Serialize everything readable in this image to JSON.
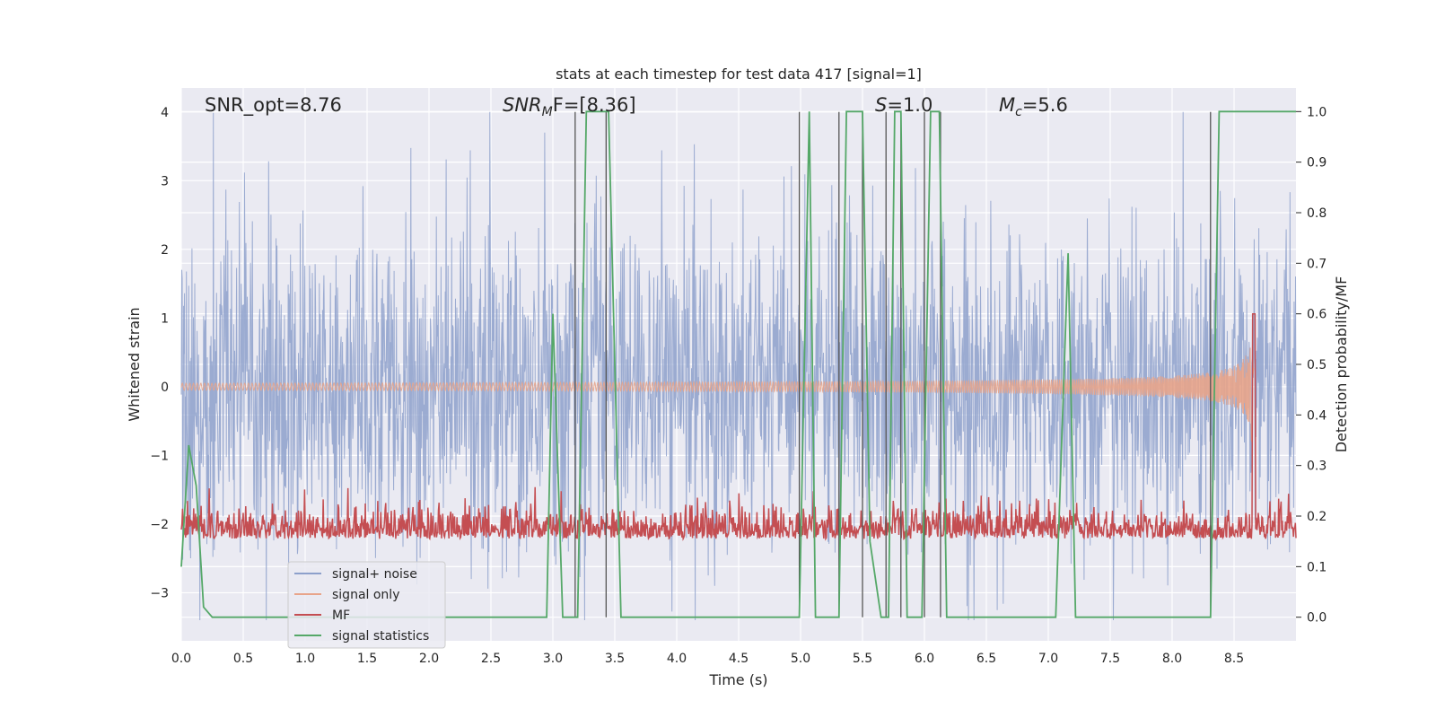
{
  "chart_data": {
    "type": "line",
    "title": "stats at each timestep for test data 417 [signal=1]",
    "xlabel": "Time (s)",
    "ylabel": "Whitened strain",
    "y2label": "Detection probability/MF",
    "xlim": [
      0.0,
      9.0
    ],
    "ylim": [
      -3.7,
      4.35
    ],
    "y2lim": [
      -0.0467,
      1.0467
    ],
    "xticks": [
      "0.0",
      "0.5",
      "1.0",
      "1.5",
      "2.0",
      "2.5",
      "3.0",
      "3.5",
      "4.0",
      "4.5",
      "5.0",
      "5.5",
      "6.0",
      "6.5",
      "7.0",
      "7.5",
      "8.0",
      "8.5"
    ],
    "yticks": [
      "4",
      "3",
      "2",
      "1",
      "0",
      "−1",
      "−2",
      "−3"
    ],
    "y2ticks": [
      "1.0",
      "0.9",
      "0.8",
      "0.7",
      "0.6",
      "0.5",
      "0.4",
      "0.3",
      "0.2",
      "0.1",
      "0.0"
    ],
    "grid": true,
    "legend_position": "lower-left",
    "annotations": {
      "snr_opt": "SNR_opt=8.76",
      "snr_mf_main": "SNR",
      "snr_mf_sub": "M",
      "snr_mf_rest": "F=[8.36]",
      "s_main": "S",
      "s_rest": "=1.0",
      "mc_main": "M",
      "mc_sub": "c",
      "mc_rest": "=5.6"
    },
    "series": [
      {
        "name": "signal+ noise",
        "color": "#8da0cb",
        "description_values": {
          "amplitude_envelope": [
            -3.4,
            4.0
          ]
        }
      },
      {
        "name": "signal only",
        "color": "#e8a48a",
        "chirp_end_time": 8.66,
        "peak_amplitude": 0.8
      },
      {
        "name": "MF",
        "color": "#c44e52",
        "baseline": 0.17,
        "peak_time": 8.66,
        "peak_value": 1.0
      },
      {
        "name": "signal statistics",
        "color": "#55a868",
        "points": [
          [
            0.0,
            0.1
          ],
          [
            0.06,
            0.34
          ],
          [
            0.12,
            0.26
          ],
          [
            0.18,
            0.02
          ],
          [
            0.25,
            0.0
          ],
          [
            2.95,
            0.0
          ],
          [
            3.0,
            0.6
          ],
          [
            3.08,
            0.0
          ],
          [
            3.2,
            0.0
          ],
          [
            3.27,
            1.0
          ],
          [
            3.45,
            1.0
          ],
          [
            3.55,
            0.0
          ],
          [
            4.99,
            0.0
          ],
          [
            5.07,
            1.0
          ],
          [
            5.12,
            0.0
          ],
          [
            5.31,
            0.0
          ],
          [
            5.37,
            1.0
          ],
          [
            5.5,
            1.0
          ],
          [
            5.56,
            0.15
          ],
          [
            5.65,
            0.0
          ],
          [
            5.71,
            0.0
          ],
          [
            5.76,
            1.0
          ],
          [
            5.81,
            1.0
          ],
          [
            5.86,
            0.0
          ],
          [
            5.98,
            0.0
          ],
          [
            6.05,
            1.0
          ],
          [
            6.12,
            1.0
          ],
          [
            6.18,
            0.0
          ],
          [
            7.06,
            0.0
          ],
          [
            7.16,
            0.72
          ],
          [
            7.22,
            0.0
          ],
          [
            8.31,
            0.0
          ],
          [
            8.38,
            1.0
          ],
          [
            9.0,
            1.0
          ]
        ]
      }
    ],
    "vertical_lines_time": [
      3.18,
      3.43,
      4.99,
      5.31,
      5.5,
      5.69,
      5.81,
      6.0,
      6.13,
      8.31
    ]
  }
}
